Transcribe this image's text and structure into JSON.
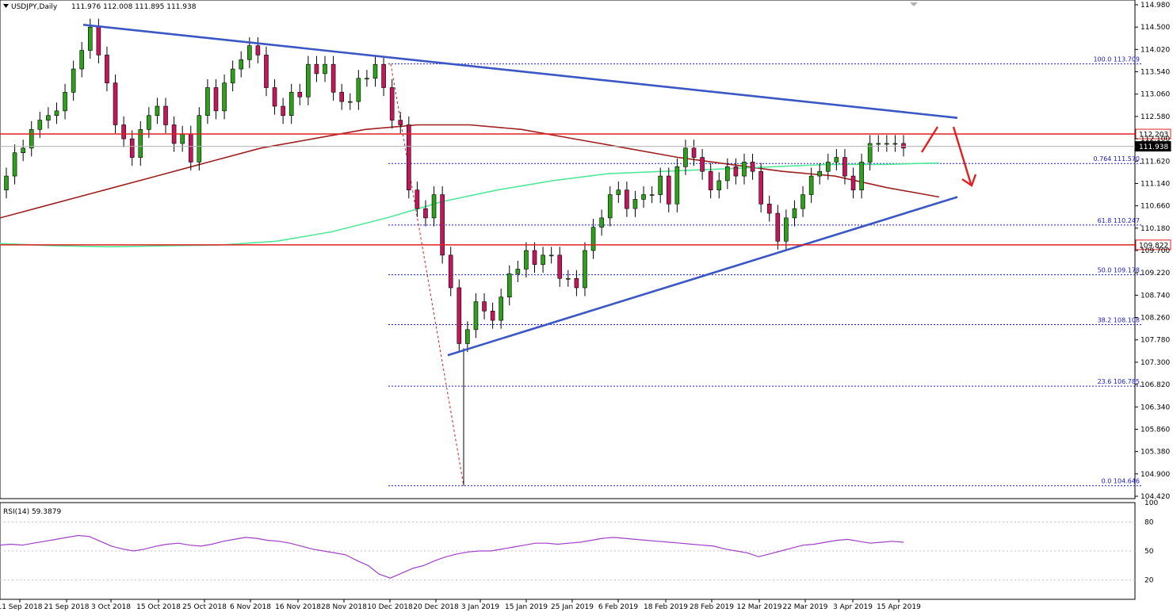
{
  "header": {
    "symbol_label": "USDJPY,Daily",
    "ohlc_label": "111.976 112.008 111.895 111.938"
  },
  "rsi_header": {
    "label": "RSI(14) 59.3879"
  },
  "colors": {
    "bull_candle": "#2ea01c",
    "bear_candle": "#c2185b",
    "trendline": "#3a57c4",
    "resistance_line": "#e02020",
    "ma_slow": "#a01f1f",
    "ma_fast": "#52e89a",
    "fib_level": "#1a1ac8",
    "rsi_line": "#a040c8"
  },
  "chart_data": [
    {
      "type": "candlestick",
      "title": "USDJPY,Daily",
      "ylim": [
        104.42,
        114.98
      ],
      "ytick_labels": [
        "114.980",
        "114.500",
        "114.020",
        "113.540",
        "113.060",
        "112.580",
        "112.100",
        "111.620",
        "111.140",
        "110.660",
        "110.180",
        "109.700",
        "109.220",
        "108.740",
        "108.260",
        "107.780",
        "107.300",
        "106.820",
        "106.340",
        "105.860",
        "105.380",
        "104.900",
        "104.420"
      ],
      "xtick_labels": [
        "11 Sep 2018",
        "21 Sep 2018",
        "3 Oct 2018",
        "15 Oct 2018",
        "25 Oct 2018",
        "6 Nov 2018",
        "16 Nov 2018",
        "28 Nov 2018",
        "10 Dec 2018",
        "20 Dec 2018",
        "3 Jan 2019",
        "15 Jan 2019",
        "25 Jan 2019",
        "6 Feb 2019",
        "18 Feb 2019",
        "28 Feb 2019",
        "12 Mar 2019",
        "22 Mar 2019",
        "3 Apr 2019",
        "15 Apr 2019"
      ],
      "closes": [
        111.3,
        111.8,
        111.9,
        112.3,
        112.5,
        112.6,
        112.7,
        113.1,
        113.6,
        114.0,
        114.5,
        113.9,
        113.3,
        112.4,
        112.1,
        111.7,
        112.3,
        112.6,
        112.8,
        112.4,
        112.0,
        112.2,
        111.6,
        112.6,
        113.2,
        112.7,
        113.3,
        113.6,
        113.8,
        114.1,
        113.9,
        113.2,
        112.8,
        112.6,
        113.1,
        113.0,
        113.7,
        113.5,
        113.7,
        113.1,
        112.9,
        112.9,
        113.4,
        113.4,
        113.7,
        113.2,
        112.5,
        112.4,
        111.0,
        110.6,
        110.4,
        110.9,
        109.6,
        108.9,
        107.7,
        108.0,
        108.6,
        108.4,
        108.2,
        108.7,
        109.2,
        109.3,
        109.7,
        109.4,
        109.6,
        109.6,
        109.1,
        109.1,
        108.9,
        109.7,
        110.2,
        110.4,
        110.9,
        111.0,
        110.6,
        110.8,
        110.9,
        110.9,
        111.3,
        110.7,
        111.5,
        111.9,
        111.7,
        111.4,
        111.0,
        111.2,
        111.5,
        111.3,
        111.6,
        111.4,
        110.7,
        110.5,
        109.9,
        110.4,
        110.6,
        110.9,
        111.3,
        111.4,
        111.6,
        111.7,
        111.3,
        111.0,
        111.6,
        112.0,
        112.0,
        112.0,
        112.0,
        111.9
      ],
      "resistance_levels": [
        112.203,
        109.822
      ],
      "price_labels": [
        "112.203",
        "111.938",
        "109.822"
      ],
      "fibonacci": [
        {
          "label": "100.0 113.709",
          "value": 113.709
        },
        {
          "label": "0.764 111.570",
          "value": 111.57
        },
        {
          "label": "61.8 110.247",
          "value": 110.247
        },
        {
          "label": "50.0 109.178",
          "value": 109.178
        },
        {
          "label": "38.2 108.108",
          "value": 108.108
        },
        {
          "label": "23.6 106.785",
          "value": 106.785
        },
        {
          "label": "0.0 104.646",
          "value": 104.646
        }
      ],
      "ma_fast_values": [
        109.85,
        109.8,
        109.78,
        109.8,
        109.82,
        109.9,
        110.1,
        110.4,
        110.75,
        111.0,
        111.2,
        111.35,
        111.4,
        111.45,
        111.5,
        111.55,
        111.55,
        111.58
      ],
      "ma_slow_values": [
        110.4,
        110.7,
        111.0,
        111.3,
        111.6,
        111.9,
        112.1,
        112.3,
        112.4,
        112.4,
        112.3,
        112.1,
        111.9,
        111.7,
        111.55,
        111.4,
        111.3,
        111.05,
        110.85
      ],
      "upper_trendline": [
        114.55,
        112.55
      ],
      "lower_trendline": [
        107.45,
        110.85
      ],
      "annotation": "bullish spike then bearish reversal arrows near 112.2 resistance"
    },
    {
      "type": "line",
      "title": "RSI(14) 59.3879",
      "ylim": [
        0,
        100
      ],
      "ytick_labels": [
        "100",
        "80",
        "50",
        "20",
        "0"
      ],
      "values": [
        56,
        57,
        56,
        58,
        60,
        62,
        64,
        66,
        65,
        60,
        55,
        52,
        50,
        52,
        55,
        57,
        58,
        56,
        55,
        57,
        60,
        62,
        64,
        63,
        61,
        60,
        58,
        55,
        52,
        50,
        48,
        46,
        40,
        35,
        26,
        22,
        27,
        32,
        35,
        40,
        44,
        47,
        49,
        50,
        50,
        52,
        54,
        56,
        58,
        58,
        57,
        58,
        59,
        61,
        63,
        64,
        63,
        62,
        61,
        60,
        59,
        58,
        57,
        56,
        55,
        52,
        50,
        48,
        44,
        47,
        50,
        53,
        56,
        57,
        59,
        61,
        62,
        60,
        58,
        59,
        60,
        59
      ]
    }
  ]
}
